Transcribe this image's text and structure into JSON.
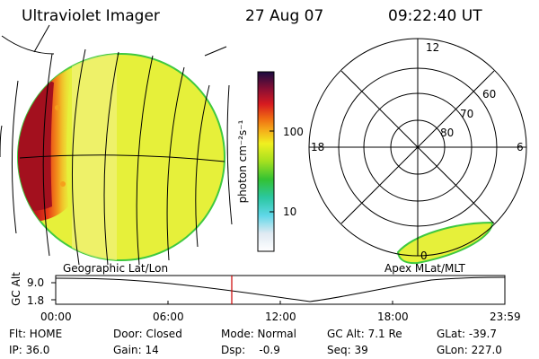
{
  "header": {
    "instrument": "Ultraviolet Imager",
    "date": "27 Aug 07",
    "time": "09:22:40 UT"
  },
  "colorbar": {
    "unit_label": "photon cm⁻²s⁻¹",
    "ticks": [
      "100",
      "10"
    ]
  },
  "panels": {
    "left_label": "Geographic Lat/Lon",
    "right_label": "Apex MLat/MLT"
  },
  "polar": {
    "mlt_labels": {
      "top": "12",
      "left": "18",
      "right": "6",
      "bottom": "0"
    },
    "lat_labels": [
      "60",
      "70",
      "80"
    ]
  },
  "altitude_plot": {
    "ylabel": "GC Alt",
    "yticks": [
      "9.0",
      "1.8"
    ],
    "xticks": [
      "00:00",
      "06:00",
      "12:00",
      "18:00",
      "23:59"
    ],
    "marker_time": "09:22:40"
  },
  "status": {
    "flt": "Flt: HOME",
    "ip": "IP: 36.0",
    "door": "Door: Closed",
    "gain": "Gain: 14",
    "mode": "Mode: Normal",
    "dsp": "Dsp:    -0.9",
    "gcalt": "GC Alt: 7.1 Re",
    "seq": "Seq: 39",
    "glat": "GLat: -39.7",
    "glon": "GLon: 227.0"
  },
  "colors": {
    "background": "#ffffff",
    "earth_fill": "#e6f03a",
    "aurora_dark": "#a3101e",
    "aurora_mid": "#e02818",
    "marker": "#cc0000"
  }
}
